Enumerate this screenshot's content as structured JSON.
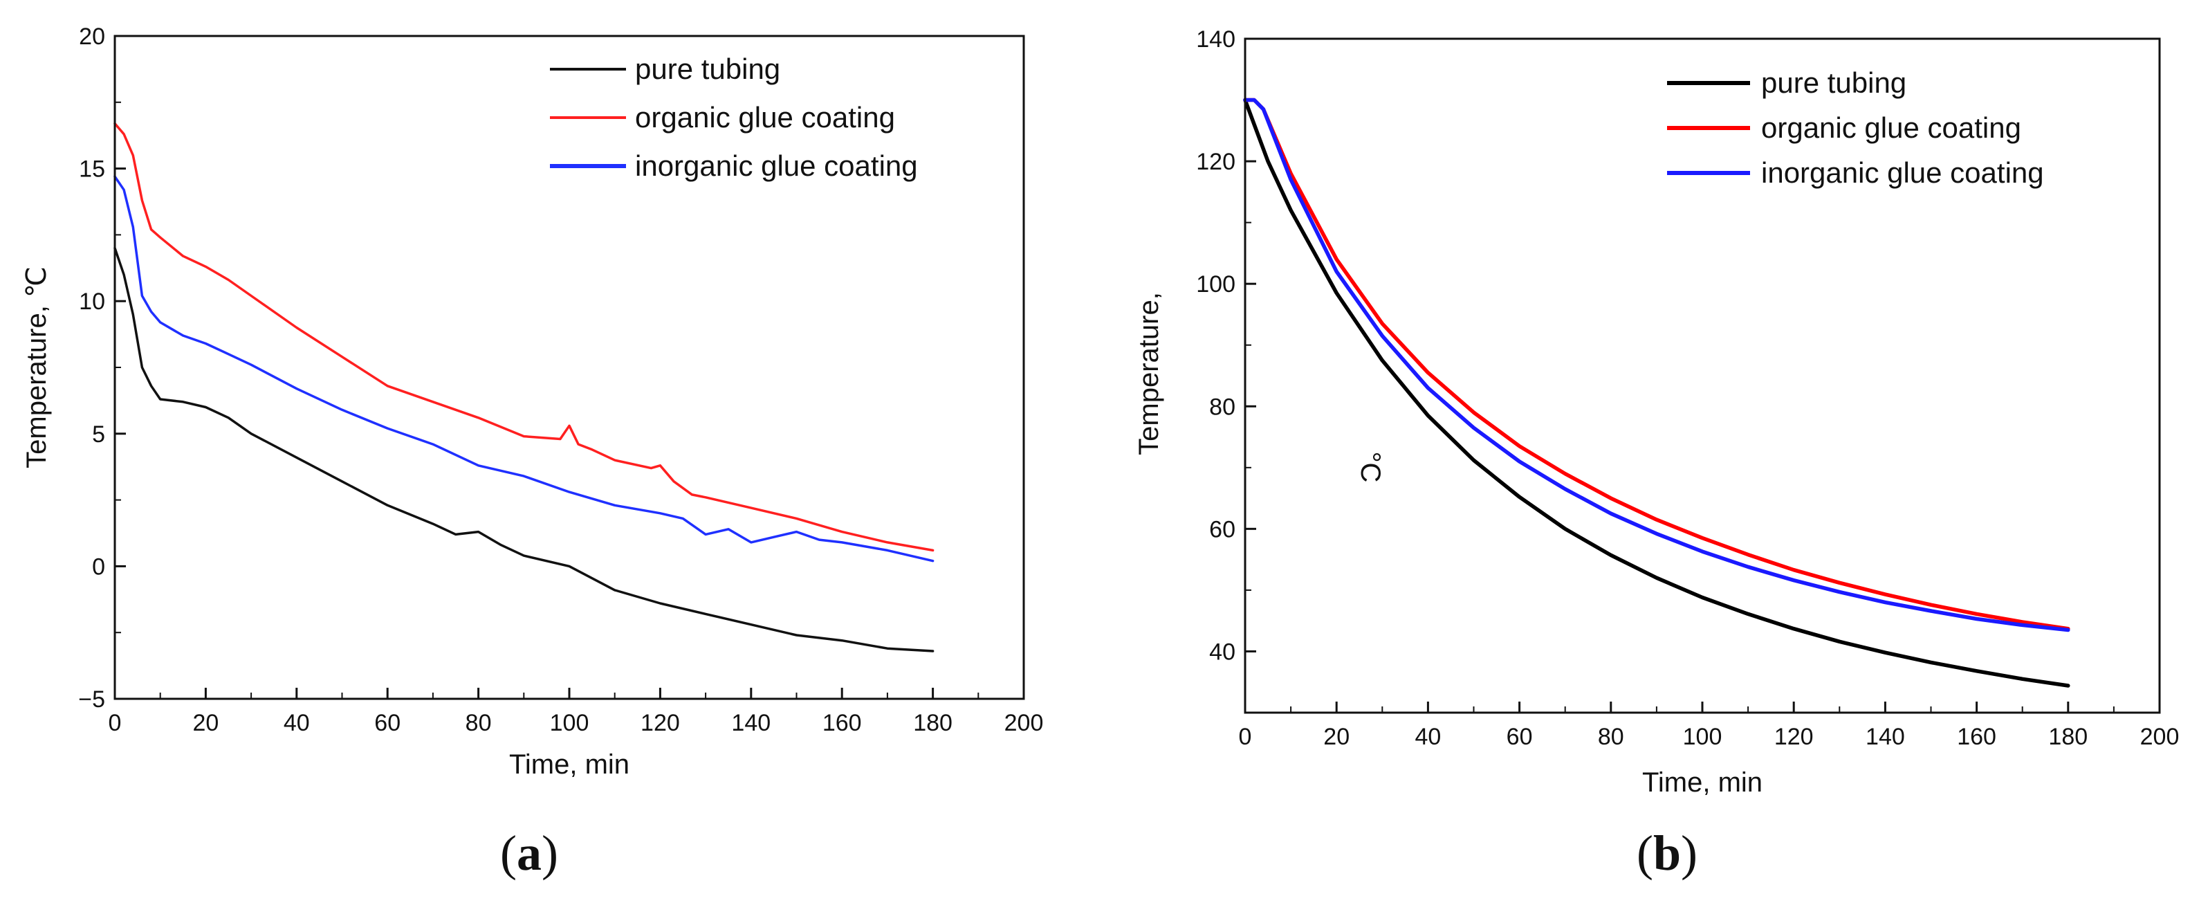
{
  "chart_data": [
    {
      "panel": "a",
      "type": "line",
      "panel_label": {
        "open": "(",
        "letter": "a",
        "close": ")"
      },
      "xlabel": "Time, min",
      "ylabel": "Temperature, ℃",
      "xlim": [
        0,
        200
      ],
      "ylim": [
        -5,
        20
      ],
      "x_ticks": [
        0,
        20,
        40,
        60,
        80,
        100,
        120,
        140,
        160,
        180,
        200
      ],
      "y_ticks": [
        -5,
        0,
        5,
        10,
        15,
        20
      ],
      "x_tick_labels": [
        "0",
        "20",
        "40",
        "60",
        "80",
        "100",
        "120",
        "140",
        "160",
        "180",
        "200"
      ],
      "y_tick_labels": [
        "−5",
        "0",
        "5",
        "10",
        "15",
        "20"
      ],
      "legend_position": "top-right",
      "series": [
        {
          "name": "pure tubing",
          "color": "#111111",
          "x": [
            0,
            2,
            4,
            6,
            8,
            10,
            15,
            20,
            25,
            30,
            40,
            50,
            60,
            70,
            75,
            80,
            85,
            90,
            100,
            110,
            120,
            130,
            140,
            150,
            160,
            170,
            180
          ],
          "y": [
            12.0,
            11.0,
            9.5,
            7.5,
            6.8,
            6.3,
            6.2,
            6.0,
            5.6,
            5.0,
            4.1,
            3.2,
            2.3,
            1.6,
            1.2,
            1.3,
            0.8,
            0.4,
            0.0,
            -0.9,
            -1.4,
            -1.8,
            -2.2,
            -2.6,
            -2.8,
            -3.1,
            -3.2
          ]
        },
        {
          "name": "organic glue coating",
          "color": "#ff2020",
          "x": [
            0,
            2,
            4,
            6,
            8,
            10,
            15,
            20,
            25,
            30,
            40,
            50,
            60,
            70,
            80,
            90,
            98,
            100,
            102,
            105,
            110,
            118,
            120,
            123,
            127,
            130,
            140,
            150,
            160,
            170,
            180
          ],
          "y": [
            16.7,
            16.3,
            15.5,
            13.8,
            12.7,
            12.4,
            11.7,
            11.3,
            10.8,
            10.2,
            9.0,
            7.9,
            6.8,
            6.2,
            5.6,
            4.9,
            4.8,
            5.3,
            4.6,
            4.4,
            4.0,
            3.7,
            3.8,
            3.2,
            2.7,
            2.6,
            2.2,
            1.8,
            1.3,
            0.9,
            0.6
          ]
        },
        {
          "name": "inorganic glue coating",
          "color": "#1f30ff",
          "x": [
            0,
            2,
            4,
            6,
            8,
            10,
            15,
            20,
            25,
            30,
            40,
            50,
            60,
            70,
            80,
            90,
            100,
            110,
            120,
            125,
            130,
            135,
            140,
            145,
            150,
            155,
            160,
            170,
            180
          ],
          "y": [
            14.7,
            14.2,
            12.8,
            10.2,
            9.6,
            9.2,
            8.7,
            8.4,
            8.0,
            7.6,
            6.7,
            5.9,
            5.2,
            4.6,
            3.8,
            3.4,
            2.8,
            2.3,
            2.0,
            1.8,
            1.2,
            1.4,
            0.9,
            1.1,
            1.3,
            1.0,
            0.9,
            0.6,
            0.2
          ]
        }
      ]
    },
    {
      "panel": "b",
      "type": "line",
      "panel_label": {
        "open": "(",
        "letter": "b",
        "close": ")"
      },
      "xlabel": "Time, min",
      "ylabel": "Temperature,",
      "unit_annotation": "°C",
      "xlim": [
        0,
        200
      ],
      "ylim": [
        30,
        140
      ],
      "x_ticks": [
        0,
        20,
        40,
        60,
        80,
        100,
        120,
        140,
        160,
        180,
        200
      ],
      "y_ticks": [
        40,
        60,
        80,
        100,
        120,
        140
      ],
      "x_tick_labels": [
        "0",
        "20",
        "40",
        "60",
        "80",
        "100",
        "120",
        "140",
        "160",
        "180",
        "200"
      ],
      "y_tick_labels": [
        "40",
        "60",
        "80",
        "100",
        "120",
        "140"
      ],
      "legend_position": "top-right",
      "series": [
        {
          "name": "pure tubing",
          "color": "#000000",
          "x": [
            0,
            2,
            5,
            10,
            20,
            30,
            40,
            50,
            60,
            70,
            80,
            90,
            100,
            110,
            120,
            130,
            140,
            150,
            160,
            170,
            180
          ],
          "y": [
            130,
            126,
            120,
            112,
            98.5,
            87.5,
            78.5,
            71.2,
            65.2,
            60.0,
            55.7,
            52.0,
            48.8,
            46.1,
            43.7,
            41.6,
            39.8,
            38.2,
            36.8,
            35.5,
            34.4
          ]
        },
        {
          "name": "organic glue coating",
          "color": "#ff0000",
          "x": [
            0,
            2,
            4,
            10,
            20,
            30,
            40,
            50,
            60,
            70,
            80,
            90,
            100,
            110,
            120,
            130,
            140,
            150,
            160,
            170,
            180
          ],
          "y": [
            130,
            130,
            128.5,
            118,
            104,
            93.5,
            85.5,
            79,
            73.5,
            69,
            65,
            61.5,
            58.5,
            55.8,
            53.3,
            51.2,
            49.3,
            47.6,
            46.1,
            44.8,
            43.7
          ]
        },
        {
          "name": "inorganic glue coating",
          "color": "#1a1aff",
          "x": [
            0,
            2,
            4,
            10,
            20,
            30,
            40,
            50,
            60,
            70,
            80,
            90,
            100,
            110,
            120,
            130,
            140,
            150,
            160,
            170,
            180
          ],
          "y": [
            130,
            130,
            128.5,
            117,
            102,
            91.5,
            83,
            76.5,
            71,
            66.5,
            62.5,
            59.2,
            56.3,
            53.8,
            51.6,
            49.7,
            48.0,
            46.6,
            45.3,
            44.3,
            43.5
          ]
        }
      ]
    }
  ]
}
